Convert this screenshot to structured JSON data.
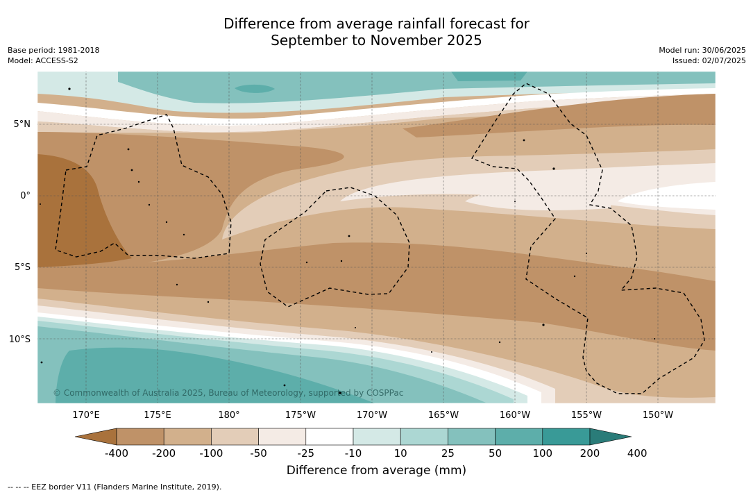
{
  "title_line1": "Difference from average rainfall forecast for",
  "title_line2": "September to November 2025",
  "base_period": "Base period: 1981-2018",
  "model": "Model: ACCESS-S2",
  "model_run": "Model run: 30/06/2025",
  "issued": "Issued: 02/07/2025",
  "lat_labels": [
    "5°N",
    "0°",
    "5°S",
    "10°S"
  ],
  "lon_labels": [
    "170°E",
    "175°E",
    "180°",
    "175°W",
    "170°W",
    "165°W",
    "160°W",
    "155°W",
    "150°W"
  ],
  "copyright": "© Commonwealth of Australia 2025, Bureau of Meteorology, supported by COSPPac",
  "colorbar": {
    "title": "Difference from average (mm)",
    "ticks": [
      "-400",
      "-200",
      "-100",
      "-50",
      "-25",
      "-10",
      "10",
      "25",
      "50",
      "100",
      "200",
      "400"
    ],
    "colors": [
      "#a9723c",
      "#bf9268",
      "#d2b08c",
      "#e3cdb8",
      "#f4ebe5",
      "#ffffff",
      "#d4e9e6",
      "#acd7d3",
      "#84c1bd",
      "#5daeaa",
      "#399a97",
      "#2a7c79"
    ]
  },
  "legend_footnote": "-- -- -- EEZ border V11 (Flanders Marine Institute, 2019)."
}
